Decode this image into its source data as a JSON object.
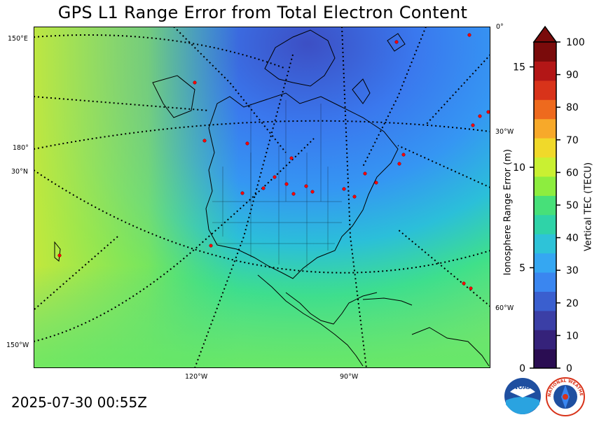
{
  "title": "GPS L1 Range Error from Total Electron Content",
  "timestamp": "2025-07-30 00:55Z",
  "map": {
    "grid_labels": {
      "lon_150E": "150°E",
      "lon_180": "180°",
      "lat_30N": "30°N",
      "lon_150W": "150°W",
      "lon_0": "0°",
      "lon_30W": "30°W",
      "lon_60W": "60°W",
      "lon_120W": "120°W",
      "lon_90W": "90°W"
    },
    "station_marker_color": "#ff0000",
    "coastline_color": "#000000"
  },
  "colorbar": {
    "left_axis": {
      "label": "Ionosphere Range Error (m)",
      "ticks": [
        "0",
        "5",
        "10",
        "15"
      ],
      "tick_values": [
        0,
        5,
        10,
        15
      ]
    },
    "right_axis": {
      "label": "Vertical TEC (TECU)",
      "ticks": [
        "0",
        "10",
        "20",
        "30",
        "40",
        "50",
        "60",
        "70",
        "80",
        "90",
        "100"
      ],
      "tick_values": [
        0,
        10,
        20,
        30,
        40,
        50,
        60,
        70,
        80,
        90,
        100
      ]
    },
    "extend": "max",
    "colors": [
      "#2a0d52",
      "#35227a",
      "#3b3fa6",
      "#3a5fcf",
      "#3a86f0",
      "#35a7f2",
      "#2ec3d8",
      "#2fd3a8",
      "#47e079",
      "#8ded3f",
      "#c9f032",
      "#f0d92a",
      "#f7a92a",
      "#ee6a1e",
      "#d8331a",
      "#b31616",
      "#7a0b0b"
    ]
  },
  "logos": {
    "noaa": "NOAA",
    "nws_text": "NATIONAL WEATHER SERVICE"
  }
}
